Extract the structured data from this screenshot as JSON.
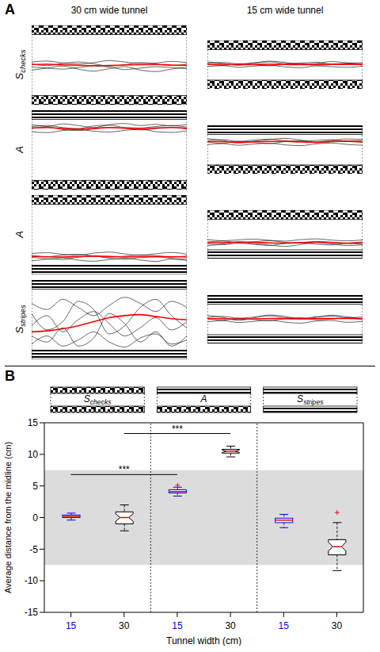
{
  "panel_letters": [
    "A",
    "B"
  ],
  "column_titles": [
    "30 cm wide tunnel",
    "15 cm wide tunnel"
  ],
  "row_labels": [
    {
      "main": "S",
      "sub": "checks"
    },
    {
      "main": "A"
    },
    {
      "main": "A"
    },
    {
      "main": "S",
      "sub": "stripes"
    }
  ],
  "chart_data": [
    {
      "type": "line",
      "tunnel_width": 30,
      "walls": {
        "top": "checks",
        "bottom": "checks"
      },
      "x": [
        0,
        1,
        2,
        3,
        4,
        5,
        6,
        7,
        8,
        9,
        10
      ],
      "xlim": [
        0,
        10
      ],
      "ylim": [
        -19.5,
        19.5
      ],
      "tick_labels": false,
      "series": [
        {
          "color": "#000000",
          "values": [
            1.5,
            2.0,
            1.0,
            0.5,
            1.2,
            2.2,
            1.5,
            0.8,
            1.0,
            1.8,
            1.2
          ]
        },
        {
          "color": "#000000",
          "values": [
            -1.0,
            -1.5,
            -2.0,
            -1.2,
            -0.5,
            -1.0,
            -2.2,
            -1.5,
            -0.8,
            -1.2,
            -1.8
          ]
        },
        {
          "color": "#000000",
          "values": [
            0.5,
            -0.3,
            0.8,
            1.5,
            0.6,
            -0.5,
            0.2,
            1.2,
            0.5,
            -0.2,
            0.4
          ]
        },
        {
          "color": "#000000",
          "values": [
            -2.5,
            -1.5,
            -0.5,
            -2.0,
            -3.0,
            -1.8,
            -0.8,
            -2.5,
            -3.2,
            -2.0,
            -1.0
          ]
        },
        {
          "color": "#ff0000",
          "values": [
            0.3,
            0.4,
            0.1,
            -0.1,
            -0.3,
            -0.2,
            0.0,
            0.2,
            0.3,
            0.0,
            -0.1
          ]
        }
      ]
    },
    {
      "type": "line",
      "tunnel_width": 15,
      "walls": {
        "top": "checks",
        "bottom": "checks"
      },
      "x": [
        0,
        1,
        2,
        3,
        4,
        5,
        6,
        7,
        8,
        9,
        10
      ],
      "xlim": [
        0,
        10
      ],
      "ylim": [
        -12,
        12
      ],
      "tick_labels": false,
      "series": [
        {
          "color": "#000000",
          "values": [
            0.8,
            1.2,
            0.5,
            1.0,
            1.5,
            0.6,
            0.9,
            1.3,
            0.4,
            0.8,
            1.1
          ]
        },
        {
          "color": "#000000",
          "values": [
            -0.8,
            -0.4,
            -1.2,
            -0.6,
            -0.2,
            -1.0,
            -1.4,
            -0.5,
            -0.9,
            -1.2,
            -0.6
          ]
        },
        {
          "color": "#000000",
          "values": [
            0.2,
            -0.3,
            0.4,
            0.0,
            -0.5,
            0.3,
            0.6,
            -0.2,
            0.1,
            0.5,
            -0.1
          ]
        },
        {
          "color": "#000000",
          "values": [
            1.5,
            0.7,
            -0.2,
            0.9,
            1.8,
            1.2,
            0.2,
            0.7,
            1.6,
            1.0,
            0.3
          ]
        },
        {
          "color": "#ff0000",
          "values": [
            0.2,
            0.3,
            0.1,
            0.2,
            0.3,
            0.2,
            0.1,
            0.2,
            0.3,
            0.2,
            0.2
          ]
        }
      ]
    },
    {
      "type": "line",
      "tunnel_width": 30,
      "walls": {
        "top": "stripes",
        "bottom": "checks"
      },
      "x": [
        0,
        1,
        2,
        3,
        4,
        5,
        6,
        7,
        8,
        9,
        10
      ],
      "xlim": [
        0,
        10
      ],
      "ylim": [
        -19.5,
        19.5
      ],
      "tick_labels": false,
      "series": [
        {
          "color": "#000000",
          "values": [
            11.5,
            12.0,
            11.0,
            10.5,
            11.8,
            12.2,
            11.0,
            10.8,
            11.5,
            12.0,
            11.2
          ]
        },
        {
          "color": "#000000",
          "values": [
            9.0,
            8.5,
            9.5,
            10.0,
            9.2,
            8.8,
            9.6,
            10.2,
            9.0,
            8.6,
            9.4
          ]
        },
        {
          "color": "#000000",
          "values": [
            10.5,
            11.2,
            10.0,
            9.5,
            10.3,
            11.0,
            10.6,
            9.8,
            10.4,
            11.1,
            10.2
          ]
        },
        {
          "color": "#000000",
          "values": [
            12.5,
            11.5,
            12.8,
            12.0,
            11.0,
            12.4,
            13.0,
            12.0,
            12.6,
            11.8,
            12.5
          ]
        },
        {
          "color": "#ff0000",
          "values": [
            10.8,
            11.0,
            10.5,
            10.2,
            10.6,
            11.0,
            10.7,
            10.4,
            10.8,
            11.0,
            10.6
          ]
        }
      ]
    },
    {
      "type": "line",
      "tunnel_width": 15,
      "walls": {
        "top": "stripes",
        "bottom": "checks"
      },
      "x": [
        0,
        1,
        2,
        3,
        4,
        5,
        6,
        7,
        8,
        9,
        10
      ],
      "xlim": [
        0,
        10
      ],
      "ylim": [
        -12,
        12
      ],
      "tick_labels": false,
      "series": [
        {
          "color": "#000000",
          "values": [
            4.5,
            5.0,
            4.0,
            4.8,
            5.2,
            4.4,
            4.0,
            4.6,
            5.0,
            4.2,
            4.7
          ]
        },
        {
          "color": "#000000",
          "values": [
            2.5,
            3.0,
            2.2,
            2.8,
            3.2,
            2.4,
            2.0,
            2.9,
            3.3,
            2.6,
            2.2
          ]
        },
        {
          "color": "#000000",
          "values": [
            3.8,
            3.2,
            4.2,
            3.6,
            3.0,
            4.0,
            4.4,
            3.4,
            3.8,
            4.3,
            3.6
          ]
        },
        {
          "color": "#000000",
          "values": [
            5.5,
            4.5,
            3.5,
            4.2,
            5.0,
            5.6,
            4.8,
            3.8,
            4.5,
            5.3,
            4.9
          ]
        },
        {
          "color": "#ff0000",
          "values": [
            4.0,
            4.0,
            3.5,
            3.9,
            4.1,
            4.1,
            3.8,
            3.7,
            4.2,
            4.1,
            3.9
          ]
        }
      ]
    },
    {
      "type": "line",
      "tunnel_width": 30,
      "walls": {
        "top": "checks",
        "bottom": "stripes"
      },
      "x": [
        0,
        1,
        2,
        3,
        4,
        5,
        6,
        7,
        8,
        9,
        10
      ],
      "xlim": [
        0,
        10
      ],
      "ylim": [
        -19.5,
        19.5
      ],
      "tick_labels": false,
      "series": [
        {
          "color": "#000000",
          "values": [
            -11.0,
            -11.8,
            -12.2,
            -11.0,
            -10.5,
            -11.5,
            -12.0,
            -11.2,
            -10.8,
            -11.6,
            -12.0
          ]
        },
        {
          "color": "#000000",
          "values": [
            -9.2,
            -8.8,
            -9.6,
            -10.0,
            -9.0,
            -8.5,
            -9.4,
            -10.1,
            -9.3,
            -8.7,
            -9.5
          ]
        },
        {
          "color": "#000000",
          "values": [
            -10.2,
            -10.8,
            -10.0,
            -9.6,
            -10.4,
            -11.0,
            -10.5,
            -9.9,
            -10.3,
            -10.9,
            -10.4
          ]
        },
        {
          "color": "#000000",
          "values": [
            -12.8,
            -12.0,
            -11.4,
            -12.5,
            -13.0,
            -12.2,
            -11.6,
            -12.4,
            -13.1,
            -12.0,
            -12.6
          ]
        },
        {
          "color": "#ff0000",
          "values": [
            -10.6,
            -10.8,
            -10.9,
            -10.7,
            -10.5,
            -10.6,
            -10.9,
            -10.8,
            -10.7,
            -10.8,
            -10.9
          ]
        }
      ]
    },
    {
      "type": "line",
      "tunnel_width": 15,
      "walls": {
        "top": "checks",
        "bottom": "stripes"
      },
      "x": [
        0,
        1,
        2,
        3,
        4,
        5,
        6,
        7,
        8,
        9,
        10
      ],
      "xlim": [
        0,
        10
      ],
      "ylim": [
        -12,
        12
      ],
      "tick_labels": false,
      "series": [
        {
          "color": "#000000",
          "values": [
            -4.5,
            -5.0,
            -4.2,
            -4.8,
            -5.3,
            -4.4,
            -4.0,
            -4.7,
            -5.1,
            -4.3,
            -4.8
          ]
        },
        {
          "color": "#000000",
          "values": [
            -2.4,
            -3.0,
            -2.6,
            -2.2,
            -2.8,
            -3.2,
            -2.5,
            -2.1,
            -2.7,
            -3.1,
            -2.6
          ]
        },
        {
          "color": "#000000",
          "values": [
            -3.6,
            -3.2,
            -4.0,
            -3.5,
            -3.0,
            -3.8,
            -4.2,
            -3.4,
            -3.7,
            -4.1,
            -3.5
          ]
        },
        {
          "color": "#000000",
          "values": [
            -5.5,
            -4.6,
            -3.8,
            -4.4,
            -5.2,
            -5.8,
            -4.9,
            -4.0,
            -4.6,
            -5.4,
            -5.0
          ]
        },
        {
          "color": "#ff0000",
          "values": [
            -3.9,
            -4.0,
            -3.6,
            -3.8,
            -4.1,
            -4.2,
            -3.9,
            -3.6,
            -4.0,
            -4.3,
            -4.0
          ]
        }
      ]
    },
    {
      "type": "line",
      "tunnel_width": 30,
      "walls": {
        "top": "stripes",
        "bottom": "stripes"
      },
      "x": [
        0,
        1,
        2,
        3,
        4,
        5,
        6,
        7,
        8,
        9,
        10
      ],
      "xlim": [
        0,
        10
      ],
      "ylim": [
        -19.5,
        19.5
      ],
      "tick_labels": false,
      "series": [
        {
          "color": "#000000",
          "values": [
            8.0,
            5.0,
            10.0,
            6.0,
            2.0,
            7.0,
            11.0,
            8.0,
            4.0,
            9.0,
            6.0
          ]
        },
        {
          "color": "#000000",
          "values": [
            -12.0,
            -8.0,
            -13.0,
            -10.0,
            -6.0,
            -11.0,
            -13.5,
            -9.0,
            -7.0,
            -12.0,
            -10.0
          ]
        },
        {
          "color": "#000000",
          "values": [
            -3.0,
            2.0,
            -6.0,
            0.0,
            4.0,
            -2.0,
            -8.0,
            -4.0,
            1.0,
            -5.0,
            -1.0
          ]
        },
        {
          "color": "#000000",
          "values": [
            3.0,
            -5.0,
            -1.0,
            9.0,
            5.0,
            -7.0,
            -3.0,
            6.0,
            10.0,
            2.0,
            -4.0
          ]
        },
        {
          "color": "#000000",
          "values": [
            -8.0,
            -11.0,
            -4.0,
            -13.0,
            -9.0,
            3.0,
            -2.0,
            -11.0,
            -6.0,
            -13.0,
            -8.0
          ]
        },
        {
          "color": "#ff0000",
          "values": [
            -6.0,
            -5.5,
            -4.5,
            -3.0,
            -1.0,
            1.0,
            2.0,
            2.5,
            1.5,
            0.5,
            0.0
          ]
        }
      ]
    },
    {
      "type": "line",
      "tunnel_width": 15,
      "walls": {
        "top": "stripes",
        "bottom": "stripes"
      },
      "x": [
        0,
        1,
        2,
        3,
        4,
        5,
        6,
        7,
        8,
        9,
        10
      ],
      "xlim": [
        0,
        10
      ],
      "ylim": [
        -12,
        12
      ],
      "tick_labels": false,
      "series": [
        {
          "color": "#000000",
          "values": [
            1.0,
            1.5,
            0.6,
            1.2,
            1.8,
            0.9,
            0.5,
            1.3,
            1.7,
            0.8,
            1.2
          ]
        },
        {
          "color": "#000000",
          "values": [
            -1.2,
            -0.6,
            -1.5,
            -0.9,
            -0.4,
            -1.3,
            -1.8,
            -0.8,
            -0.5,
            -1.4,
            -1.0
          ]
        },
        {
          "color": "#000000",
          "values": [
            0.3,
            -0.4,
            0.6,
            0.0,
            -0.6,
            0.4,
            0.9,
            -0.2,
            0.2,
            0.7,
            -0.1
          ]
        },
        {
          "color": "#000000",
          "values": [
            2.0,
            1.0,
            -0.5,
            0.8,
            2.2,
            1.5,
            0.2,
            1.0,
            2.1,
            1.3,
            0.4
          ]
        },
        {
          "color": "#ff0000",
          "values": [
            0.4,
            0.4,
            0.2,
            0.3,
            0.5,
            0.4,
            0.3,
            0.4,
            0.5,
            0.5,
            0.4
          ]
        }
      ]
    },
    {
      "type": "box",
      "xlabel": "Tunnel width (cm)",
      "ylabel": "Average distance from the midline (cm)",
      "categories": [
        15,
        30,
        15,
        30,
        15,
        30
      ],
      "ylim": [
        -15,
        15
      ],
      "yticks": [
        -15,
        -10,
        -5,
        0,
        5,
        10,
        15
      ],
      "shaded_band": [
        -7.5,
        7.5
      ],
      "groups": [
        {
          "label": {
            "main": "S",
            "sub": "checks"
          },
          "walls": {
            "top": "checks",
            "bottom": "checks"
          },
          "boxes": [
            {
              "median": 0.2,
              "q1": 0.0,
              "q3": 0.4,
              "whisker_low": -0.4,
              "whisker_high": 0.7,
              "outliers": [],
              "color": "#0000ff"
            },
            {
              "median": 0.0,
              "q1": -1.0,
              "q3": 0.9,
              "whisker_low": -2.1,
              "whisker_high": 2.0,
              "notch_low": -0.6,
              "notch_high": 0.6,
              "outliers": [],
              "color": "#000000"
            }
          ]
        },
        {
          "label": {
            "main": "A"
          },
          "walls": {
            "top": "stripes",
            "bottom": "checks"
          },
          "boxes": [
            {
              "median": 4.1,
              "q1": 3.9,
              "q3": 4.4,
              "whisker_low": 3.4,
              "whisker_high": 4.8,
              "outliers": [
                5.1
              ],
              "color": "#0000ff"
            },
            {
              "median": 10.5,
              "q1": 10.2,
              "q3": 10.8,
              "whisker_low": 9.6,
              "whisker_high": 11.3,
              "notch_low": 10.3,
              "notch_high": 10.7,
              "outliers": [],
              "color": "#000000"
            }
          ]
        },
        {
          "label": {
            "main": "S",
            "sub": "stripes"
          },
          "walls": {
            "top": "stripes",
            "bottom": "stripes"
          },
          "boxes": [
            {
              "median": -0.4,
              "q1": -0.8,
              "q3": -0.1,
              "whisker_low": -1.6,
              "whisker_high": 0.5,
              "outliers": [],
              "color": "#0000ff"
            },
            {
              "median": -4.6,
              "q1": -5.9,
              "q3": -3.5,
              "whisker_low": -8.4,
              "whisker_high": -0.8,
              "notch_low": -5.3,
              "notch_high": -3.9,
              "outliers": [
                0.8
              ],
              "color": "#000000"
            }
          ]
        }
      ],
      "significance": [
        {
          "from": 0,
          "to": 2,
          "y": 6.8,
          "label": "***"
        },
        {
          "from": 1,
          "to": 3,
          "y": 13.3,
          "label": "***"
        }
      ]
    }
  ]
}
